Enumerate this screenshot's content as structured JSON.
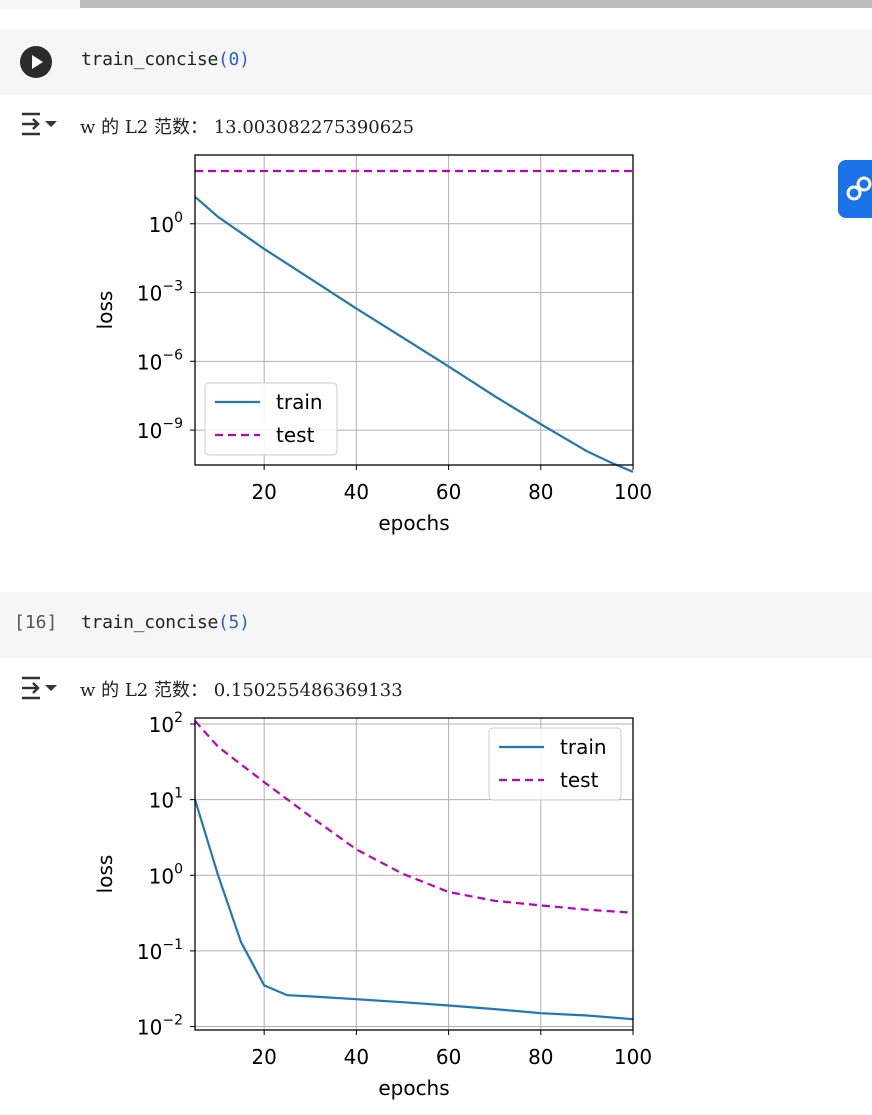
{
  "cells": [
    {
      "code_fn": "train_concise",
      "code_arg": "0",
      "output_text": "w 的 L2 范数： 13.003082275390625",
      "chart_data": {
        "type": "line",
        "xlabel": "epochs",
        "ylabel": "loss",
        "yscale": "log",
        "xlim": [
          5,
          100
        ],
        "ylim": [
          3e-11,
          1000
        ],
        "xticks": [
          20,
          40,
          60,
          80,
          100
        ],
        "yticks": [
          {
            "value": 1,
            "base": "10",
            "exp": "0"
          },
          {
            "value": 0.001,
            "base": "10",
            "exp": "−3"
          },
          {
            "value": 1e-06,
            "base": "10",
            "exp": "−6"
          },
          {
            "value": 1e-09,
            "base": "10",
            "exp": "−9"
          }
        ],
        "grid": true,
        "legend_position": "lower-left",
        "series": [
          {
            "name": "train",
            "style": "solid",
            "color": "#1f77b4",
            "x": [
              5,
              10,
              20,
              30,
              40,
              50,
              60,
              70,
              80,
              90,
              95,
              100
            ],
            "y": [
              15,
              2,
              0.08,
              0.004,
              0.0002,
              1.1e-05,
              6e-07,
              3e-08,
              1.8e-09,
              1.2e-10,
              4e-11,
              1.5e-11
            ]
          },
          {
            "name": "test",
            "style": "dashed",
            "color": "#bf00bf",
            "x": [
              5,
              100
            ],
            "y": [
              200,
              200
            ]
          }
        ]
      }
    },
    {
      "exec_count": "[16]",
      "code_fn": "train_concise",
      "code_arg": "5",
      "output_text": "w 的 L2 范数： 0.150255486369133",
      "chart_data": {
        "type": "line",
        "xlabel": "epochs",
        "ylabel": "loss",
        "yscale": "log",
        "xlim": [
          5,
          100
        ],
        "ylim": [
          0.009,
          120
        ],
        "xticks": [
          20,
          40,
          60,
          80,
          100
        ],
        "yticks": [
          {
            "value": 100,
            "base": "10",
            "exp": "2"
          },
          {
            "value": 10,
            "base": "10",
            "exp": "1"
          },
          {
            "value": 1,
            "base": "10",
            "exp": "0"
          },
          {
            "value": 0.1,
            "base": "10",
            "exp": "−1"
          },
          {
            "value": 0.01,
            "base": "10",
            "exp": "−2"
          }
        ],
        "grid": true,
        "legend_position": "upper-right",
        "series": [
          {
            "name": "train",
            "style": "solid",
            "color": "#1f77b4",
            "x": [
              5,
              10,
              15,
              20,
              25,
              30,
              40,
              50,
              60,
              70,
              80,
              90,
              100
            ],
            "y": [
              10,
              1,
              0.13,
              0.035,
              0.026,
              0.025,
              0.023,
              0.021,
              0.019,
              0.017,
              0.015,
              0.014,
              0.0125
            ]
          },
          {
            "name": "test",
            "style": "dashed",
            "color": "#bf00bf",
            "x": [
              5,
              10,
              20,
              30,
              40,
              50,
              60,
              70,
              80,
              90,
              100
            ],
            "y": [
              110,
              50,
              17,
              6,
              2.2,
              1.05,
              0.6,
              0.46,
              0.4,
              0.35,
              0.32
            ]
          }
        ]
      }
    }
  ]
}
